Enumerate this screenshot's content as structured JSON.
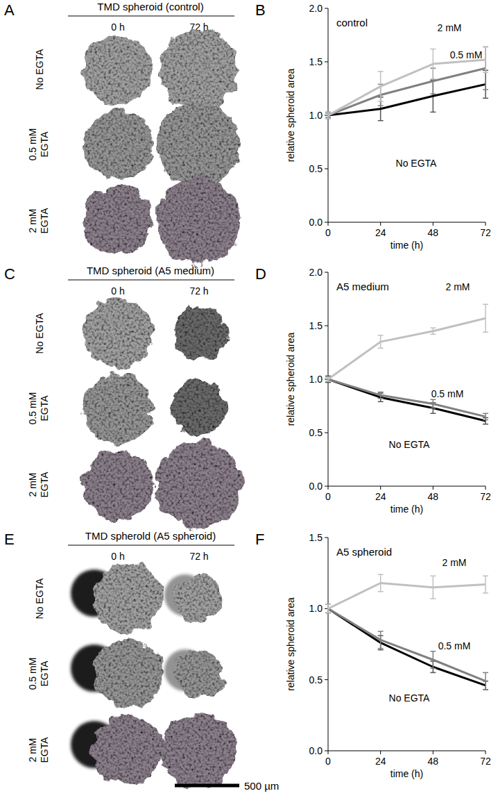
{
  "chart_data": [
    {
      "type": "line",
      "panel": "B",
      "title": "control",
      "x_label": "time (h)",
      "y_label": "relative spheroid area",
      "x": [
        0,
        24,
        48,
        72
      ],
      "xlim": [
        0,
        72
      ],
      "xticks": [
        0,
        24,
        48,
        72
      ],
      "ylim": [
        0,
        2
      ],
      "yticks": [
        {
          "value": 0,
          "label": "0.0"
        },
        0.5,
        {
          "value": 1,
          "label": "1.0"
        },
        1.5,
        {
          "value": 2,
          "label": "2.0"
        }
      ],
      "grid": false,
      "series": [
        {
          "name": "No EGTA",
          "color": "#000000",
          "values": [
            1.0,
            1.06,
            1.18,
            1.29
          ],
          "errors": [
            0.03,
            0.11,
            0.15,
            0.13
          ]
        },
        {
          "name": "0.5 mM",
          "color": "#808080",
          "values": [
            1.0,
            1.19,
            1.32,
            1.44
          ],
          "errors": [
            0.02,
            0.1,
            0.12,
            0.2
          ]
        },
        {
          "name": "2 mM",
          "color": "#c0c0c0",
          "values": [
            1.0,
            1.27,
            1.48,
            1.52
          ],
          "errors": [
            0.03,
            0.14,
            0.14,
            0.12
          ]
        }
      ]
    },
    {
      "type": "line",
      "panel": "D",
      "title": "A5 medium",
      "x_label": "time (h)",
      "y_label": "relative spheroid area",
      "x": [
        0,
        24,
        48,
        72
      ],
      "xlim": [
        0,
        72
      ],
      "xticks": [
        0,
        24,
        48,
        72
      ],
      "ylim": [
        0,
        2
      ],
      "yticks": [
        {
          "value": 0,
          "label": "0.0"
        },
        0.5,
        {
          "value": 1,
          "label": "1.0"
        },
        1.5,
        {
          "value": 2,
          "label": "2.0"
        }
      ],
      "grid": false,
      "series": [
        {
          "name": "No EGTA",
          "color": "#000000",
          "values": [
            1.0,
            0.83,
            0.73,
            0.61
          ],
          "errors": [
            0.03,
            0.04,
            0.05,
            0.03
          ]
        },
        {
          "name": "0.5 mM",
          "color": "#808080",
          "values": [
            1.0,
            0.85,
            0.77,
            0.65
          ],
          "errors": [
            0.02,
            0.03,
            0.04,
            0.03
          ]
        },
        {
          "name": "2 mM",
          "color": "#c0c0c0",
          "values": [
            1.0,
            1.35,
            1.45,
            1.57
          ],
          "errors": [
            0.02,
            0.06,
            0.03,
            0.13
          ]
        }
      ]
    },
    {
      "type": "line",
      "panel": "F",
      "title": "A5 spheroid",
      "x_label": "time (h)",
      "y_label": "relative spheroid area",
      "x": [
        0,
        24,
        48,
        72
      ],
      "xlim": [
        0,
        72
      ],
      "xticks": [
        0,
        24,
        48,
        72
      ],
      "ylim": [
        0,
        1.5
      ],
      "yticks": [
        {
          "value": 0,
          "label": "0.0"
        },
        0.5,
        {
          "value": 1,
          "label": "1.0"
        },
        1.5
      ],
      "grid": false,
      "series": [
        {
          "name": "No EGTA",
          "color": "#000000",
          "values": [
            1.0,
            0.76,
            0.59,
            0.46
          ],
          "errors": [
            0.03,
            0.05,
            0.04,
            0.03
          ]
        },
        {
          "name": "0.5 mM",
          "color": "#808080",
          "values": [
            1.0,
            0.78,
            0.64,
            0.49
          ],
          "errors": [
            0.03,
            0.06,
            0.06,
            0.06
          ]
        },
        {
          "name": "2 mM",
          "color": "#c0c0c0",
          "values": [
            1.0,
            1.18,
            1.15,
            1.17
          ],
          "errors": [
            0.03,
            0.06,
            0.08,
            0.06
          ]
        }
      ]
    }
  ],
  "image_panels": [
    {
      "panel": "A",
      "title": "TMD spheroid (control)",
      "columns": [
        "0 h",
        "72 h"
      ],
      "rows": [
        "No EGTA",
        "0.5 mM EGTA",
        "2 mM EGTA"
      ]
    },
    {
      "panel": "C",
      "title": "TMD spheroid (A5 medium)",
      "columns": [
        "0 h",
        "72 h"
      ],
      "rows": [
        "No EGTA",
        "0.5 mM EGTA",
        "2 mM EGTA"
      ]
    },
    {
      "panel": "E",
      "title": "TMD spherold (A5 spheroid)",
      "columns": [
        "0 h",
        "72 h"
      ],
      "rows": [
        "No EGTA",
        "0.5 mM EGTA",
        "2 mM EGTA"
      ]
    }
  ],
  "scale_bar": "500 µm"
}
